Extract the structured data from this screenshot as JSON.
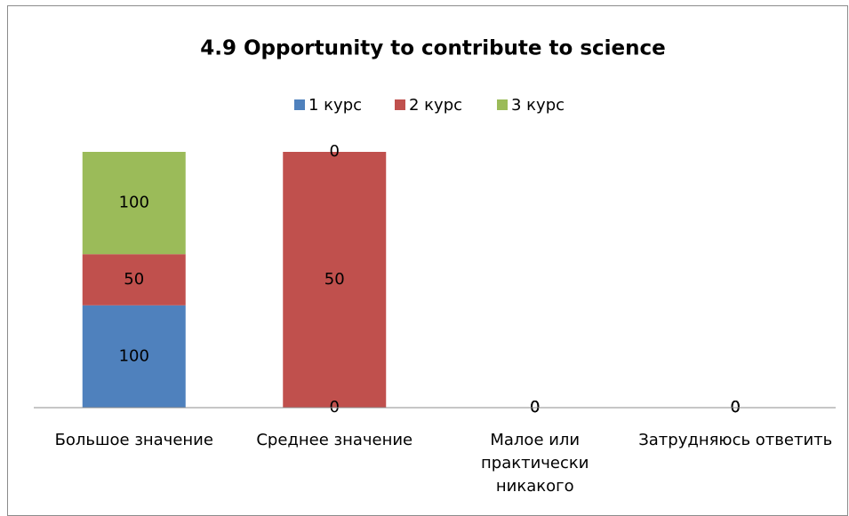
{
  "chart_data": {
    "type": "bar",
    "stacked": "percent",
    "title": "4.9 Opportunity to contribute to science",
    "categories": [
      "Большое значение",
      "Среднее значение",
      "Малое или практически никакого",
      "Затрудняюсь ответить"
    ],
    "series": [
      {
        "name": "1 курс",
        "color": "#4f81bd",
        "values": [
          100,
          0,
          0,
          0
        ]
      },
      {
        "name": "2 курс",
        "color": "#c0504d",
        "values": [
          50,
          50,
          0,
          0
        ]
      },
      {
        "name": "3 курс",
        "color": "#9bbb59",
        "values": [
          100,
          0,
          0,
          0
        ]
      }
    ],
    "legend": "top"
  }
}
